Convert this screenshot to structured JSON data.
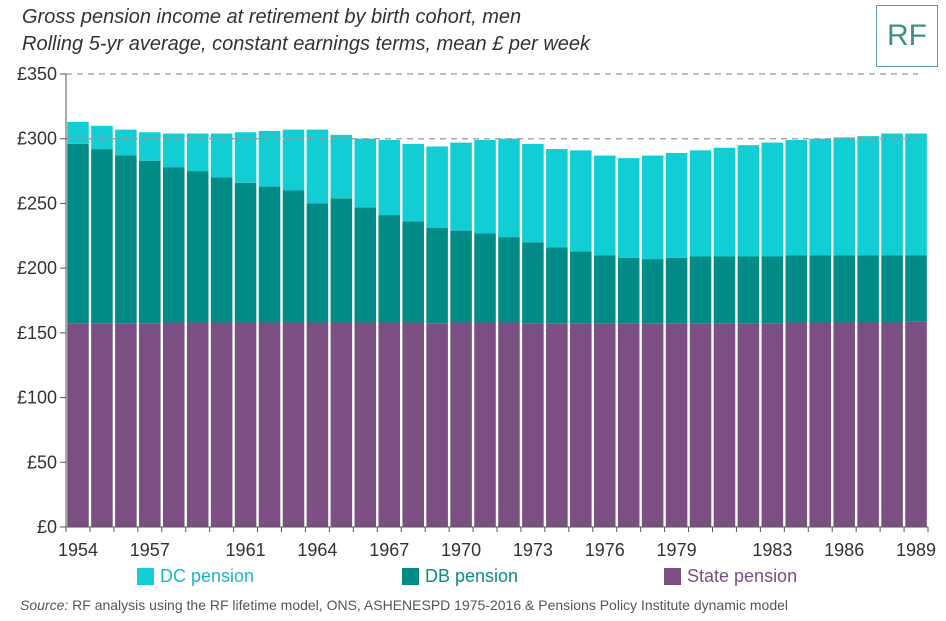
{
  "header": {
    "title": "Gross pension income at retirement by birth cohort, men",
    "subtitle": "Rolling 5-yr average, constant earnings terms, mean £ per week",
    "logo_text": "RF"
  },
  "source": {
    "label": "Source:",
    "text": "RF analysis using the RF lifetime model, ONS, ASHENESPD 1975-2016 & Pensions Policy Institute dynamic model"
  },
  "colors": {
    "dc": "#12cdd4",
    "db": "#008b87",
    "state": "#7b4f82"
  },
  "chart_data": {
    "type": "bar",
    "stacked": true,
    "x": [
      1954,
      1955,
      1956,
      1957,
      1958,
      1959,
      1960,
      1961,
      1962,
      1963,
      1964,
      1965,
      1966,
      1967,
      1968,
      1969,
      1970,
      1971,
      1972,
      1973,
      1974,
      1975,
      1976,
      1977,
      1978,
      1979,
      1980,
      1981,
      1982,
      1983,
      1984,
      1985,
      1986,
      1987,
      1988,
      1989
    ],
    "tick_labels": [
      "1954",
      "1957",
      "1961",
      "1964",
      "1967",
      "1970",
      "1973",
      "1976",
      "1979",
      "1983",
      "1986",
      "1989"
    ],
    "tick_index": [
      0,
      3,
      7,
      10,
      13,
      16,
      19,
      22,
      25,
      29,
      32,
      35
    ],
    "ylim": [
      0,
      350
    ],
    "yticks": [
      0,
      50,
      100,
      150,
      200,
      250,
      300,
      350
    ],
    "ytick_labels": [
      "£0",
      "£50",
      "£100",
      "£150",
      "£200",
      "£250",
      "£300",
      "£350"
    ],
    "reference_lines": [
      300,
      350
    ],
    "series": [
      {
        "name": "State pension",
        "key": "state",
        "values": [
          157,
          157,
          157,
          157,
          158,
          158,
          158,
          158,
          158,
          158,
          158,
          158,
          158,
          158,
          158,
          157,
          158,
          158,
          158,
          157,
          157,
          157,
          157,
          157,
          157,
          157,
          157,
          157,
          157,
          157,
          158,
          158,
          158,
          158,
          158,
          159
        ]
      },
      {
        "name": "DB pension",
        "key": "db",
        "values": [
          139,
          135,
          130,
          126,
          120,
          117,
          112,
          108,
          105,
          102,
          92,
          96,
          89,
          83,
          78,
          74,
          71,
          69,
          66,
          63,
          59,
          56,
          53,
          51,
          50,
          51,
          52,
          52,
          52,
          52,
          52,
          52,
          52,
          52,
          52,
          51
        ]
      },
      {
        "name": "DC pension",
        "key": "dc",
        "values": [
          17,
          18,
          20,
          22,
          26,
          29,
          34,
          39,
          43,
          47,
          57,
          49,
          53,
          58,
          60,
          63,
          68,
          72,
          76,
          76,
          76,
          78,
          77,
          77,
          80,
          81,
          82,
          84,
          86,
          88,
          89,
          90,
          91,
          92,
          94,
          94
        ]
      }
    ],
    "legend": [
      "DC pension",
      "DB pension",
      "State pension"
    ],
    "legend_position": "bottom"
  }
}
